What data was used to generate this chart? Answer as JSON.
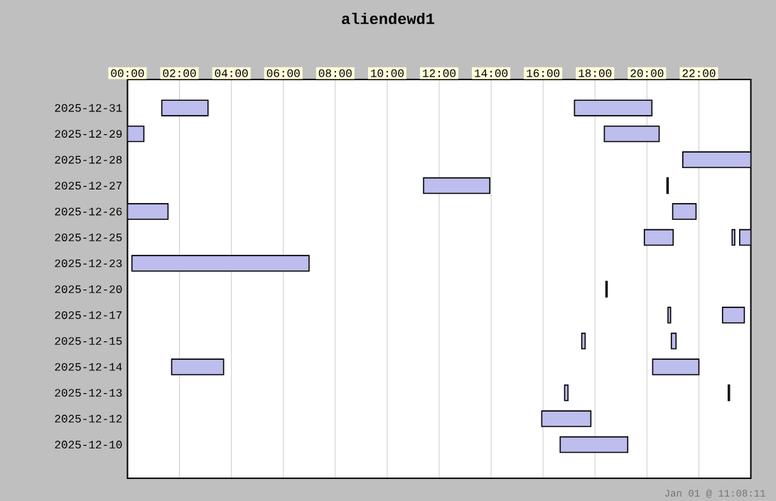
{
  "chart_data": {
    "type": "bar",
    "orientation": "horizontal",
    "title": "aliendewd1",
    "categories": [
      "2025-12-31",
      "2025-12-29",
      "2025-12-28",
      "2025-12-27",
      "2025-12-26",
      "2025-12-25",
      "2025-12-23",
      "2025-12-20",
      "2025-12-17",
      "2025-12-15",
      "2025-12-14",
      "2025-12-13",
      "2025-12-12",
      "2025-12-10"
    ],
    "series": [
      {
        "color": "#bdbdee",
        "base": [
          1.32,
          0,
          21.38,
          11.4,
          0,
          19.9,
          0.17,
          18.42,
          20.81,
          17.49,
          1.7,
          16.83,
          15.95,
          16.66
        ],
        "values": [
          1.78,
          0.63,
          2.62,
          2.55,
          1.56,
          1.11,
          6.82,
          0.05,
          0.1,
          0.13,
          2.0,
          0.13,
          1.89,
          2.6
        ]
      },
      {
        "color": "#bdbdee",
        "base": [
          17.21,
          18.36,
          null,
          20.77,
          20.99,
          23.28,
          null,
          null,
          22.91,
          20.94,
          20.22,
          23.13,
          null,
          null
        ],
        "values": [
          2.98,
          2.11,
          null,
          0.05,
          0.9,
          0.1,
          null,
          null,
          0.84,
          0.18,
          1.78,
          0.05,
          null,
          null
        ]
      },
      {
        "color": "#bdbdee",
        "base": [
          null,
          null,
          null,
          null,
          null,
          23.57,
          null,
          null,
          null,
          null,
          null,
          null,
          null,
          null
        ],
        "values": [
          null,
          null,
          null,
          null,
          null,
          0.43,
          null,
          null,
          null,
          null,
          null,
          null,
          null,
          null
        ]
      }
    ],
    "xlim": [
      0,
      24
    ],
    "xticks": [
      {
        "value": 0,
        "label": "00:00"
      },
      {
        "value": 2,
        "label": "02:00"
      },
      {
        "value": 4,
        "label": "04:00"
      },
      {
        "value": 6,
        "label": "06:00"
      },
      {
        "value": 8,
        "label": "08:00"
      },
      {
        "value": 10,
        "label": "10:00"
      },
      {
        "value": 12,
        "label": "12:00"
      },
      {
        "value": 14,
        "label": "14:00"
      },
      {
        "value": 16,
        "label": "16:00"
      },
      {
        "value": 18,
        "label": "18:00"
      },
      {
        "value": 20,
        "label": "20:00"
      },
      {
        "value": 22,
        "label": "22:00"
      }
    ],
    "grid": "x",
    "annotations": [
      "Jan 01 @ 11:08:11"
    ]
  }
}
